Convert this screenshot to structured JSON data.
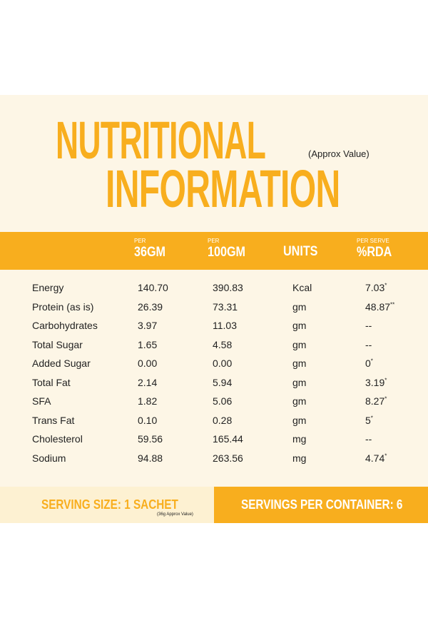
{
  "header": {
    "title_line1": "NUTRITIONAL",
    "title_line2": "INFORMATION",
    "subtitle": "(Approx Value)"
  },
  "table": {
    "columns": [
      {
        "small": "PER",
        "label": "36GM"
      },
      {
        "small": "PER",
        "label": "100GM"
      },
      {
        "label": "UNITS"
      },
      {
        "small": "PER SERVE",
        "label": "%RDA"
      }
    ],
    "rows": [
      {
        "nutrient": "Energy",
        "per_36gm": "140.70",
        "per_100gm": "390.83",
        "unit": "Kcal",
        "rda": "7.03",
        "rda_note": "*"
      },
      {
        "nutrient": "Protein (as is)",
        "per_36gm": "26.39",
        "per_100gm": "73.31",
        "unit": "gm",
        "rda": "48.87",
        "rda_note": "**"
      },
      {
        "nutrient": "Carbohydrates",
        "per_36gm": "3.97",
        "per_100gm": "11.03",
        "unit": "gm",
        "rda": "--"
      },
      {
        "nutrient": "Total Sugar",
        "per_36gm": "1.65",
        "per_100gm": "4.58",
        "unit": "gm",
        "rda": "--"
      },
      {
        "nutrient": "Added Sugar",
        "per_36gm": "0.00",
        "per_100gm": "0.00",
        "unit": "gm",
        "rda": "0",
        "rda_note": "*"
      },
      {
        "nutrient": "Total Fat",
        "per_36gm": "2.14",
        "per_100gm": "5.94",
        "unit": "gm",
        "rda": "3.19",
        "rda_note": "*"
      },
      {
        "nutrient": "SFA",
        "per_36gm": "1.82",
        "per_100gm": "5.06",
        "unit": "gm",
        "rda": "8.27",
        "rda_note": "*"
      },
      {
        "nutrient": "Trans Fat",
        "per_36gm": "0.10",
        "per_100gm": "0.28",
        "unit": "gm",
        "rda": "5",
        "rda_note": "*"
      },
      {
        "nutrient": "Cholesterol",
        "per_36gm": "59.56",
        "per_100gm": "165.44",
        "unit": "mg",
        "rda": "--"
      },
      {
        "nutrient": "Sodium",
        "per_36gm": "94.88",
        "per_100gm": "263.56",
        "unit": "mg",
        "rda": "4.74",
        "rda_note": "*"
      }
    ]
  },
  "footer": {
    "serving_size": "SERVING SIZE: 1 SACHET",
    "serving_note": "(36g Approx Value)",
    "servings_per_container": "SERVINGS PER CONTAINER: 6"
  }
}
